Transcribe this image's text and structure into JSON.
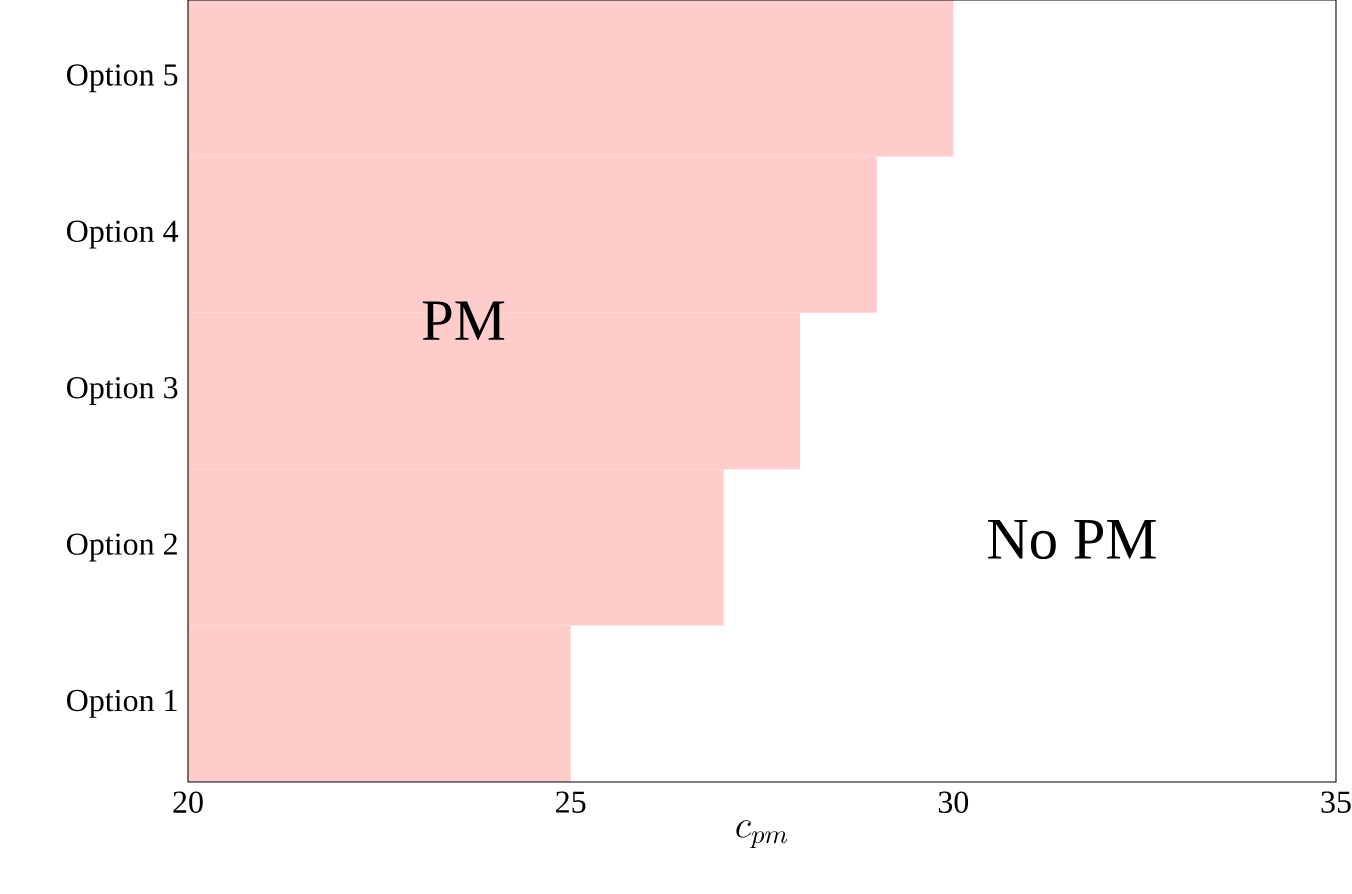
{
  "chart_data": {
    "type": "bar",
    "orientation": "horizontal",
    "categories": [
      "Option 5",
      "Option 4",
      "Option 3",
      "Option 2",
      "Option 1"
    ],
    "base": [
      20,
      20,
      20,
      20,
      20
    ],
    "values": [
      10,
      9,
      8,
      7,
      5
    ],
    "color": "#ffcccc",
    "xlim": [
      20,
      35
    ],
    "xticks": [
      20,
      25,
      30,
      35
    ],
    "xlabel": "c_{pm}",
    "annotations": [
      "PM",
      "No PM"
    ],
    "grid": false
  }
}
